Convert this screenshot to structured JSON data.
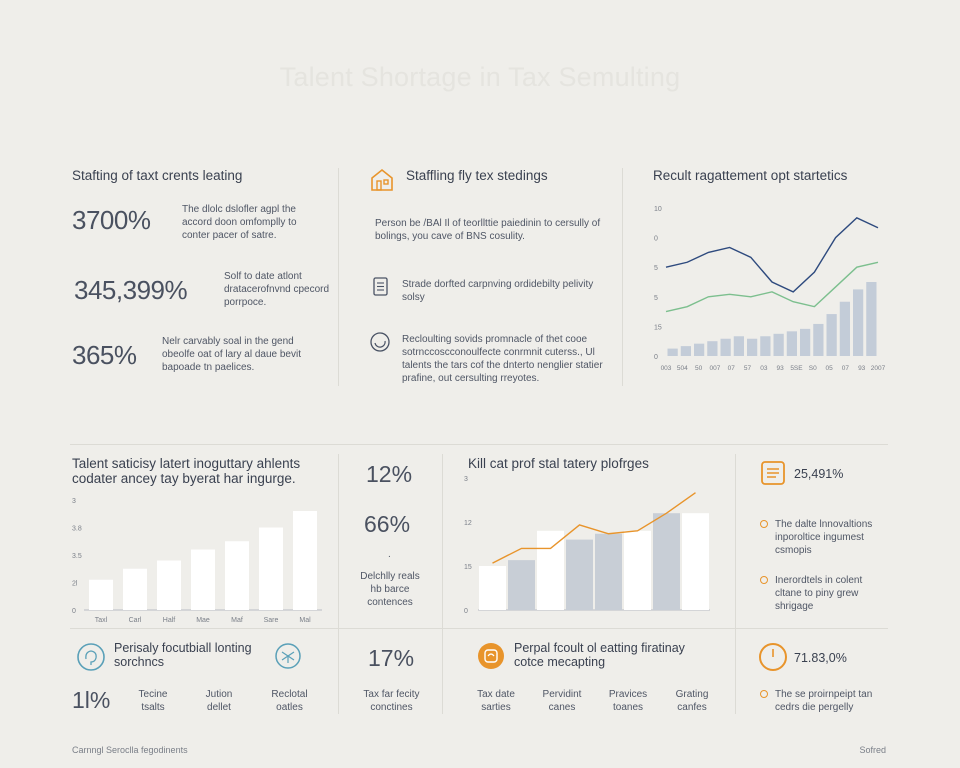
{
  "title": "Talent Shortage in Tax Semulting",
  "top_left": {
    "heading": "Stafting of taxt crents leating",
    "stats": [
      {
        "value": "3700%",
        "desc": "The dlolc dslofler agpl the accord doon omfomplly to conter pacer of satre."
      },
      {
        "value": "345,399%",
        "desc": "Solf to date atlont dratacerofnvnd cpecord porrpoce."
      },
      {
        "value": "365%",
        "desc": "Nelr carvably soal in the gend obeolfe oat of lary al daue bevit bapoade tn paelices."
      }
    ]
  },
  "top_middle": {
    "heading": "Staffling fly tex stedings",
    "intro": "Person be /BAl Il of teorllttie paiedinin to cersully of bolings, you cave of BNS cosulity.",
    "items": [
      {
        "icon": "document-icon",
        "text": "Strade dorfted carpnving ordidebilty pelivity solsy"
      },
      {
        "icon": "refresh-icon",
        "text": "Recloulting sovids promnacle of thet cooe sotrnccoscconoulfecte conrmnit cuterss., Ul talents the tars cof the dnterto nenglier statier prafine, out cersulting rreyotes."
      }
    ]
  },
  "top_right": {
    "heading": "Recult ragattement opt startetics",
    "chart_data": {
      "type": "line",
      "y_tick_labels": [
        "10",
        "0",
        "5",
        "5",
        "15",
        "0"
      ],
      "x_tick_labels": [
        "003",
        "504",
        "50",
        "007",
        "07",
        "57",
        "03",
        "93",
        "5SE",
        "S0",
        "05",
        "07",
        "93",
        "2007"
      ],
      "series": [
        {
          "values": [
            36,
            38,
            42,
            44,
            40,
            30,
            26,
            34,
            48,
            56,
            52
          ]
        },
        {
          "values": [
            18,
            20,
            24,
            25,
            24,
            26,
            22,
            20,
            28,
            36,
            38
          ]
        }
      ],
      "bars": [
        3,
        4,
        5,
        6,
        7,
        8,
        7,
        8,
        9,
        10,
        11,
        13,
        17,
        22,
        27,
        30
      ],
      "ylim": [
        0,
        60
      ]
    }
  },
  "bottom_left": {
    "heading_line1": "Talent saticisy latert inoguttary ahlents",
    "heading_line2": "codater ancey tay byerat har ingurge.",
    "chart_data": {
      "type": "bar",
      "y_tick_labels": [
        "0",
        "2l",
        "3.5",
        "3.8",
        "3"
      ],
      "categories": [
        "Taxl",
        "Carl",
        "Half",
        "Mae",
        "Maf",
        "Sare",
        "Mal"
      ],
      "values": [
        11,
        15,
        18,
        22,
        25,
        30,
        36
      ],
      "ylim": [
        0,
        40
      ]
    }
  },
  "bottom_mid_stats": {
    "stat1": "12%",
    "stat2": "66%",
    "dot": ".",
    "caption_lines": [
      "Delchlly reals",
      "hb barce",
      "contences"
    ]
  },
  "bottom_center": {
    "heading": "Kill cat prof stal tatery plofrges",
    "chart_data": {
      "type": "bar",
      "y_tick_labels": [
        "0",
        "15",
        "12",
        "3"
      ],
      "values": [
        15,
        17,
        27,
        24,
        26,
        27,
        33,
        33
      ],
      "highlight": [
        false,
        true,
        false,
        true,
        true,
        false,
        true,
        false
      ],
      "line": [
        16,
        21,
        21,
        29,
        26,
        27,
        33,
        40
      ],
      "ylim": [
        0,
        45
      ]
    }
  },
  "bottom_right": {
    "items": [
      {
        "value": "25,491%"
      },
      {
        "text": "The dalte lnnovaltions inporoltice ingumest csmopis"
      },
      {
        "text": "Inerordtels in colent cltane to piny grew shrigage"
      }
    ]
  },
  "footer_row": {
    "left_heading": "Perisaly focutbiall lonting",
    "left_heading2": "sorchncs",
    "left_stat": "1l%",
    "left_cols": [
      "Tecine tsalts",
      "Jution dellet",
      "Reclotal oatles"
    ],
    "mid_stat": "17%",
    "mid_caption": "Tax far fecity conctines",
    "center_heading": "Perpal fcoult ol eatting firatinay",
    "center_heading2": "cotce mecapting",
    "center_cols": [
      "Tax date sarties",
      "Pervidint canes",
      "Pravices toanes",
      "Grating canfes"
    ],
    "right_stat": "71.83,0%",
    "right_text": "The se proirnpeipt tan cedrs die pergelly"
  },
  "footer": {
    "left": "Carnngl Seroclla fegodinents",
    "right": "Sofred"
  },
  "colors": {
    "navy_line": "#2e4a7e",
    "green_line": "#7cbf8e",
    "bar_light": "#ffffff",
    "bar_gray": "#c8ced6",
    "bar_blue": "#c3ccd8",
    "accent_orange": "#e8942b"
  }
}
